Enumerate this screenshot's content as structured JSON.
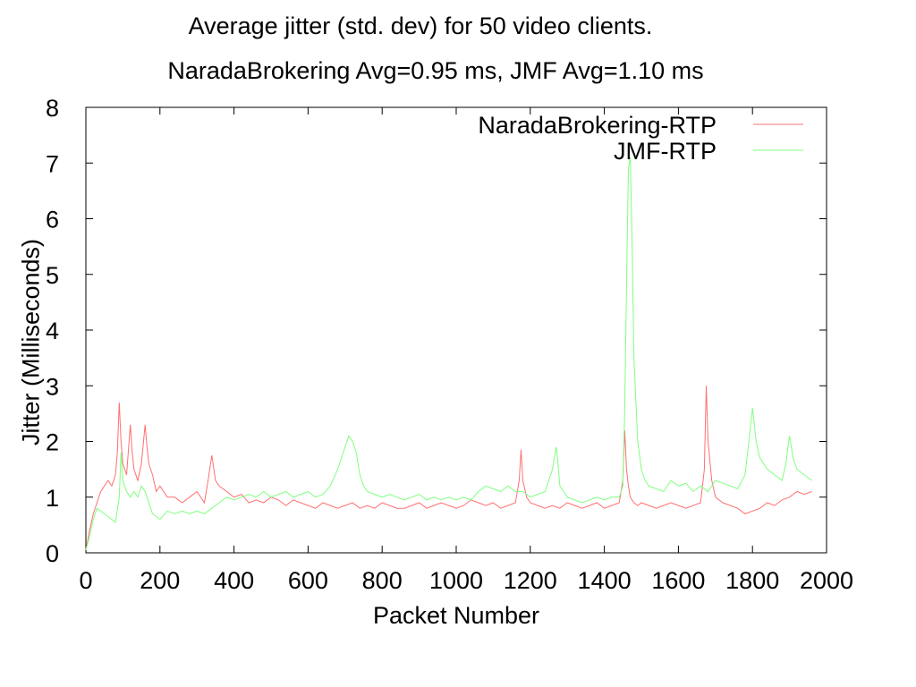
{
  "chart_data": {
    "type": "line",
    "title": "Average jitter (std. dev) for 50 video clients.",
    "subtitle": "NaradaBrokering Avg=0.95 ms, JMF Avg=1.10 ms",
    "xlabel": "Packet Number",
    "ylabel": "Jitter  (Milliseconds)",
    "xlim": [
      0,
      2000
    ],
    "ylim": [
      0,
      8
    ],
    "x_ticks": [
      "0",
      "200",
      "400",
      "600",
      "800",
      "1000",
      "1200",
      "1400",
      "1600",
      "1800",
      "2000"
    ],
    "y_ticks": [
      "0",
      "1",
      "2",
      "3",
      "4",
      "5",
      "6",
      "7",
      "8"
    ],
    "grid": false,
    "legend_position": "top-right",
    "series": [
      {
        "name": "NaradaBrokering-RTP",
        "color": "#ff7070",
        "x": [
          0,
          10,
          20,
          30,
          40,
          50,
          60,
          70,
          80,
          85,
          90,
          95,
          100,
          110,
          120,
          125,
          130,
          140,
          150,
          160,
          165,
          170,
          180,
          190,
          200,
          220,
          240,
          260,
          280,
          300,
          320,
          330,
          340,
          350,
          360,
          380,
          400,
          420,
          440,
          460,
          480,
          500,
          520,
          540,
          560,
          580,
          600,
          620,
          640,
          660,
          680,
          700,
          720,
          740,
          760,
          780,
          800,
          820,
          840,
          860,
          880,
          900,
          920,
          940,
          960,
          980,
          1000,
          1020,
          1040,
          1060,
          1080,
          1100,
          1120,
          1140,
          1160,
          1170,
          1175,
          1180,
          1190,
          1200,
          1220,
          1240,
          1260,
          1280,
          1300,
          1320,
          1340,
          1360,
          1380,
          1400,
          1420,
          1440,
          1450,
          1455,
          1460,
          1465,
          1470,
          1480,
          1490,
          1500,
          1520,
          1540,
          1560,
          1580,
          1600,
          1620,
          1640,
          1660,
          1670,
          1675,
          1680,
          1690,
          1700,
          1720,
          1740,
          1760,
          1780,
          1800,
          1820,
          1840,
          1860,
          1880,
          1900,
          1920,
          1940,
          1960
        ],
        "values": [
          0.05,
          0.4,
          0.7,
          0.9,
          1.1,
          1.2,
          1.3,
          1.2,
          1.4,
          1.8,
          2.7,
          2.0,
          1.6,
          1.4,
          2.3,
          1.8,
          1.5,
          1.3,
          1.6,
          2.3,
          1.9,
          1.6,
          1.4,
          1.1,
          1.2,
          1.0,
          1.0,
          0.9,
          1.0,
          1.1,
          0.9,
          1.3,
          1.75,
          1.3,
          1.2,
          1.1,
          1.0,
          1.05,
          0.9,
          0.95,
          0.9,
          1.0,
          0.95,
          0.85,
          0.95,
          0.9,
          0.85,
          0.8,
          0.9,
          0.85,
          0.8,
          0.85,
          0.9,
          0.8,
          0.85,
          0.8,
          0.9,
          0.85,
          0.8,
          0.8,
          0.85,
          0.9,
          0.8,
          0.85,
          0.9,
          0.85,
          0.8,
          0.85,
          0.95,
          0.9,
          0.85,
          0.9,
          0.8,
          0.85,
          0.9,
          1.3,
          1.85,
          1.3,
          1.0,
          0.9,
          0.85,
          0.8,
          0.85,
          0.8,
          0.9,
          0.85,
          0.8,
          0.85,
          0.9,
          0.8,
          0.85,
          0.9,
          1.3,
          2.2,
          1.5,
          1.2,
          1.0,
          0.9,
          0.85,
          0.9,
          0.85,
          0.8,
          0.85,
          0.9,
          0.85,
          0.8,
          0.85,
          0.9,
          1.5,
          3.0,
          2.0,
          1.3,
          1.0,
          0.9,
          0.85,
          0.8,
          0.7,
          0.75,
          0.8,
          0.9,
          0.85,
          0.95,
          1.0,
          1.1,
          1.05,
          1.1
        ]
      },
      {
        "name": "JMF-RTP",
        "color": "#80ff80",
        "x": [
          0,
          10,
          20,
          30,
          40,
          50,
          60,
          70,
          80,
          90,
          95,
          100,
          110,
          120,
          130,
          140,
          150,
          160,
          170,
          180,
          190,
          200,
          220,
          240,
          260,
          280,
          300,
          320,
          340,
          360,
          380,
          400,
          420,
          440,
          460,
          480,
          500,
          520,
          540,
          560,
          580,
          600,
          620,
          640,
          660,
          680,
          700,
          710,
          720,
          730,
          740,
          750,
          760,
          780,
          800,
          820,
          840,
          860,
          880,
          900,
          920,
          940,
          960,
          980,
          1000,
          1020,
          1040,
          1060,
          1080,
          1100,
          1120,
          1140,
          1160,
          1180,
          1200,
          1220,
          1240,
          1260,
          1270,
          1275,
          1280,
          1290,
          1300,
          1320,
          1340,
          1360,
          1380,
          1400,
          1420,
          1440,
          1450,
          1455,
          1460,
          1465,
          1470,
          1475,
          1480,
          1490,
          1500,
          1510,
          1520,
          1540,
          1560,
          1580,
          1600,
          1620,
          1640,
          1660,
          1680,
          1700,
          1720,
          1740,
          1760,
          1780,
          1790,
          1800,
          1810,
          1820,
          1840,
          1860,
          1880,
          1890,
          1900,
          1910,
          1920,
          1940,
          1960
        ],
        "values": [
          0.05,
          0.3,
          0.6,
          0.8,
          0.75,
          0.7,
          0.65,
          0.6,
          0.55,
          1.0,
          1.8,
          1.3,
          1.1,
          1.0,
          1.1,
          1.0,
          1.2,
          1.1,
          0.9,
          0.7,
          0.65,
          0.6,
          0.75,
          0.7,
          0.75,
          0.7,
          0.75,
          0.7,
          0.8,
          0.9,
          1.0,
          0.95,
          1.0,
          1.05,
          1.0,
          1.1,
          1.0,
          1.05,
          1.1,
          1.0,
          1.05,
          1.1,
          1.0,
          1.05,
          1.2,
          1.5,
          1.9,
          2.1,
          2.0,
          1.8,
          1.4,
          1.2,
          1.1,
          1.05,
          1.0,
          1.05,
          1.0,
          0.95,
          1.0,
          1.05,
          0.95,
          1.0,
          0.95,
          1.0,
          0.95,
          1.0,
          0.95,
          1.1,
          1.2,
          1.15,
          1.1,
          1.2,
          1.1,
          1.1,
          1.0,
          1.05,
          1.1,
          1.5,
          1.9,
          1.6,
          1.2,
          1.1,
          1.0,
          0.95,
          0.9,
          0.95,
          1.0,
          0.95,
          1.0,
          1.0,
          1.2,
          2.6,
          4.8,
          6.9,
          7.1,
          5.5,
          3.5,
          2.0,
          1.5,
          1.3,
          1.2,
          1.15,
          1.1,
          1.3,
          1.2,
          1.25,
          1.1,
          1.2,
          1.1,
          1.3,
          1.25,
          1.2,
          1.15,
          1.4,
          2.0,
          2.6,
          2.0,
          1.7,
          1.5,
          1.4,
          1.3,
          1.6,
          2.1,
          1.7,
          1.5,
          1.4,
          1.3
        ]
      }
    ]
  }
}
